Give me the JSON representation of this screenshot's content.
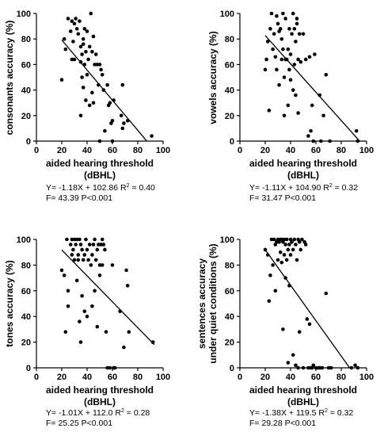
{
  "chart_data": [
    {
      "type": "scatter",
      "xlabel_line1": "aided hearing threshold",
      "xlabel_line2": "(dBHL)",
      "ylabel_lines": [
        "consonants accuracy (%)"
      ],
      "xlim": [
        0,
        100
      ],
      "ylim": [
        0,
        100
      ],
      "xticks": [
        "0",
        "20",
        "40",
        "60",
        "80",
        "100"
      ],
      "yticks": [
        "0",
        "20",
        "40",
        "60",
        "80",
        "100"
      ],
      "fit": {
        "slope": -1.18,
        "intercept": 102.86,
        "x_range": [
          20,
          87
        ]
      },
      "equation": "Y= -1.18X + 102.86   R",
      "r2_value": " = 0.40",
      "stats": "F= 43.39  P<0.001",
      "points": [
        [
          20,
          48
        ],
        [
          22,
          80
        ],
        [
          23,
          72
        ],
        [
          25,
          96
        ],
        [
          27,
          86
        ],
        [
          28,
          94
        ],
        [
          28,
          64
        ],
        [
          29,
          78
        ],
        [
          30,
          92
        ],
        [
          30,
          64
        ],
        [
          31,
          96
        ],
        [
          32,
          88
        ],
        [
          33,
          84
        ],
        [
          34,
          94
        ],
        [
          35,
          74
        ],
        [
          35,
          62
        ],
        [
          35,
          20
        ],
        [
          36,
          68
        ],
        [
          36,
          50
        ],
        [
          37,
          80
        ],
        [
          37,
          76
        ],
        [
          37,
          42
        ],
        [
          38,
          88
        ],
        [
          38,
          60
        ],
        [
          39,
          70
        ],
        [
          39,
          32
        ],
        [
          40,
          86
        ],
        [
          40,
          52
        ],
        [
          41,
          64
        ],
        [
          42,
          74
        ],
        [
          42,
          28
        ],
        [
          43,
          100
        ],
        [
          44,
          70
        ],
        [
          44,
          38
        ],
        [
          45,
          82
        ],
        [
          45,
          30
        ],
        [
          46,
          60
        ],
        [
          47,
          68
        ],
        [
          48,
          60
        ],
        [
          49,
          44
        ],
        [
          50,
          60
        ],
        [
          50,
          0
        ],
        [
          51,
          56
        ],
        [
          52,
          52
        ],
        [
          53,
          40
        ],
        [
          54,
          8
        ],
        [
          56,
          44
        ],
        [
          57,
          28
        ],
        [
          58,
          30
        ],
        [
          59,
          14
        ],
        [
          60,
          16
        ],
        [
          60,
          0
        ],
        [
          61,
          32
        ],
        [
          67,
          20
        ],
        [
          68,
          10
        ],
        [
          68,
          44
        ],
        [
          69,
          14
        ],
        [
          72,
          16
        ],
        [
          91,
          4
        ]
      ]
    },
    {
      "type": "scatter",
      "xlabel_line1": "aided hearing threshold",
      "xlabel_line2": "(dBHL)",
      "ylabel_lines": [
        "vowels accuracy (%)"
      ],
      "xlim": [
        0,
        100
      ],
      "ylim": [
        0,
        100
      ],
      "xticks": [
        "0",
        "20",
        "40",
        "60",
        "80",
        "100"
      ],
      "yticks": [
        "0",
        "20",
        "40",
        "60",
        "80",
        "100"
      ],
      "fit": {
        "slope": -1.11,
        "intercept": 104.9,
        "x_range": [
          20,
          94.5
        ]
      },
      "equation": "Y= -1.11X + 104.90   R",
      "r2_value": " = 0.32",
      "stats": "F= 31.47  P<0.001",
      "points": [
        [
          20,
          56
        ],
        [
          21,
          64
        ],
        [
          22,
          78
        ],
        [
          23,
          24
        ],
        [
          24,
          88
        ],
        [
          25,
          100
        ],
        [
          26,
          72
        ],
        [
          27,
          84
        ],
        [
          28,
          66
        ],
        [
          29,
          98
        ],
        [
          29,
          56
        ],
        [
          30,
          92
        ],
        [
          31,
          86
        ],
        [
          31,
          44
        ],
        [
          32,
          88
        ],
        [
          33,
          80
        ],
        [
          33,
          64
        ],
        [
          34,
          100
        ],
        [
          34,
          72
        ],
        [
          35,
          20
        ],
        [
          35,
          50
        ],
        [
          36,
          96
        ],
        [
          36,
          64
        ],
        [
          37,
          64
        ],
        [
          38,
          72
        ],
        [
          38,
          28
        ],
        [
          39,
          88
        ],
        [
          39,
          56
        ],
        [
          40,
          68
        ],
        [
          40,
          48
        ],
        [
          41,
          84
        ],
        [
          42,
          100
        ],
        [
          42,
          40
        ],
        [
          43,
          88
        ],
        [
          43,
          60
        ],
        [
          44,
          78
        ],
        [
          44,
          36
        ],
        [
          45,
          96
        ],
        [
          45,
          92
        ],
        [
          46,
          64
        ],
        [
          46,
          22
        ],
        [
          47,
          84
        ],
        [
          48,
          62
        ],
        [
          50,
          84
        ],
        [
          52,
          64
        ],
        [
          54,
          4
        ],
        [
          55,
          66
        ],
        [
          56,
          8
        ],
        [
          57,
          28
        ],
        [
          58,
          0
        ],
        [
          59,
          68
        ],
        [
          63,
          36
        ],
        [
          64,
          0
        ],
        [
          66,
          20
        ],
        [
          68,
          52
        ],
        [
          71,
          0
        ],
        [
          92,
          8
        ],
        [
          93,
          0
        ]
      ]
    },
    {
      "type": "scatter",
      "xlabel_line1": "aided hearing threshold",
      "xlabel_line2": "(dBHL)",
      "ylabel_lines": [
        "tones accuracy (%)"
      ],
      "xlim": [
        0,
        100
      ],
      "ylim": [
        0,
        100
      ],
      "xticks": [
        "0",
        "20",
        "40",
        "60",
        "80",
        "100"
      ],
      "yticks": [
        "0",
        "20",
        "40",
        "60",
        "80",
        "100"
      ],
      "fit": {
        "slope": -1.01,
        "intercept": 112.0,
        "x_range": [
          20,
          93
        ]
      },
      "equation": "Y= -1.01X + 112.0   R",
      "r2_value": " = 0.28",
      "stats": "F= 25.25  P<0.001",
      "points": [
        [
          20,
          76
        ],
        [
          22,
          72
        ],
        [
          23,
          28
        ],
        [
          24,
          100
        ],
        [
          25,
          48
        ],
        [
          25,
          60
        ],
        [
          27,
          96
        ],
        [
          28,
          100
        ],
        [
          28,
          88
        ],
        [
          29,
          92
        ],
        [
          30,
          100
        ],
        [
          30,
          84
        ],
        [
          31,
          96
        ],
        [
          32,
          100
        ],
        [
          32,
          68
        ],
        [
          33,
          88
        ],
        [
          33,
          84
        ],
        [
          34,
          100
        ],
        [
          34,
          36
        ],
        [
          35,
          20
        ],
        [
          35,
          96
        ],
        [
          36,
          92
        ],
        [
          36,
          56
        ],
        [
          37,
          84
        ],
        [
          38,
          88
        ],
        [
          38,
          44
        ],
        [
          39,
          100
        ],
        [
          40,
          92
        ],
        [
          40,
          40
        ],
        [
          41,
          84
        ],
        [
          42,
          96
        ],
        [
          43,
          80
        ],
        [
          44,
          88
        ],
        [
          44,
          48
        ],
        [
          45,
          96
        ],
        [
          46,
          100
        ],
        [
          46,
          60
        ],
        [
          47,
          84
        ],
        [
          48,
          92
        ],
        [
          48,
          32
        ],
        [
          49,
          96
        ],
        [
          50,
          80
        ],
        [
          50,
          72
        ],
        [
          51,
          96
        ],
        [
          52,
          100
        ],
        [
          52,
          80
        ],
        [
          53,
          96
        ],
        [
          54,
          92
        ],
        [
          55,
          28
        ],
        [
          56,
          0
        ],
        [
          58,
          0
        ],
        [
          60,
          80
        ],
        [
          61,
          0
        ],
        [
          62,
          0
        ],
        [
          66,
          44
        ],
        [
          69,
          16
        ],
        [
          71,
          76
        ],
        [
          72,
          64
        ],
        [
          73,
          28
        ],
        [
          92,
          20
        ]
      ]
    },
    {
      "type": "scatter",
      "xlabel_line1": "aided hearing threshold",
      "xlabel_line2": "(dBHL)",
      "ylabel_lines": [
        "sentences accuracy",
        "under quiet conditions (%)"
      ],
      "xlim": [
        0,
        100
      ],
      "ylim": [
        0,
        100
      ],
      "xticks": [
        "0",
        "20",
        "40",
        "60",
        "80",
        "100"
      ],
      "yticks": [
        "0",
        "20",
        "40",
        "60",
        "80",
        "100"
      ],
      "fit": {
        "slope": -1.38,
        "intercept": 119.5,
        "x_range": [
          20,
          86.6
        ]
      },
      "equation": "Y= -1.38X + 119.5   R",
      "r2_value": " = 0.32",
      "stats": "F= 29.28  P<0.001",
      "points": [
        [
          20,
          92
        ],
        [
          22,
          88
        ],
        [
          23,
          52
        ],
        [
          24,
          72
        ],
        [
          25,
          100
        ],
        [
          26,
          80
        ],
        [
          27,
          100
        ],
        [
          28,
          96
        ],
        [
          28,
          60
        ],
        [
          29,
          98
        ],
        [
          30,
          100
        ],
        [
          30,
          84
        ],
        [
          31,
          98
        ],
        [
          32,
          100
        ],
        [
          32,
          90
        ],
        [
          33,
          100
        ],
        [
          33,
          82
        ],
        [
          34,
          98
        ],
        [
          34,
          30
        ],
        [
          35,
          100
        ],
        [
          35,
          88
        ],
        [
          36,
          96
        ],
        [
          36,
          70
        ],
        [
          37,
          100
        ],
        [
          37,
          84
        ],
        [
          38,
          92
        ],
        [
          38,
          4
        ],
        [
          39,
          96
        ],
        [
          39,
          64
        ],
        [
          40,
          100
        ],
        [
          40,
          88
        ],
        [
          41,
          98
        ],
        [
          42,
          92
        ],
        [
          42,
          10
        ],
        [
          43,
          100
        ],
        [
          44,
          96
        ],
        [
          44,
          2
        ],
        [
          45,
          84
        ],
        [
          46,
          100
        ],
        [
          46,
          0
        ],
        [
          47,
          98
        ],
        [
          47,
          28
        ],
        [
          48,
          92
        ],
        [
          49,
          100
        ],
        [
          50,
          0
        ],
        [
          51,
          98
        ],
        [
          52,
          96
        ],
        [
          53,
          38
        ],
        [
          54,
          0
        ],
        [
          55,
          34
        ],
        [
          56,
          0
        ],
        [
          57,
          0
        ],
        [
          58,
          2
        ],
        [
          60,
          0
        ],
        [
          62,
          0
        ],
        [
          63,
          0
        ],
        [
          65,
          0
        ],
        [
          68,
          58
        ],
        [
          70,
          0
        ],
        [
          72,
          0
        ],
        [
          88,
          0
        ],
        [
          91,
          2
        ],
        [
          93,
          0
        ]
      ]
    }
  ]
}
